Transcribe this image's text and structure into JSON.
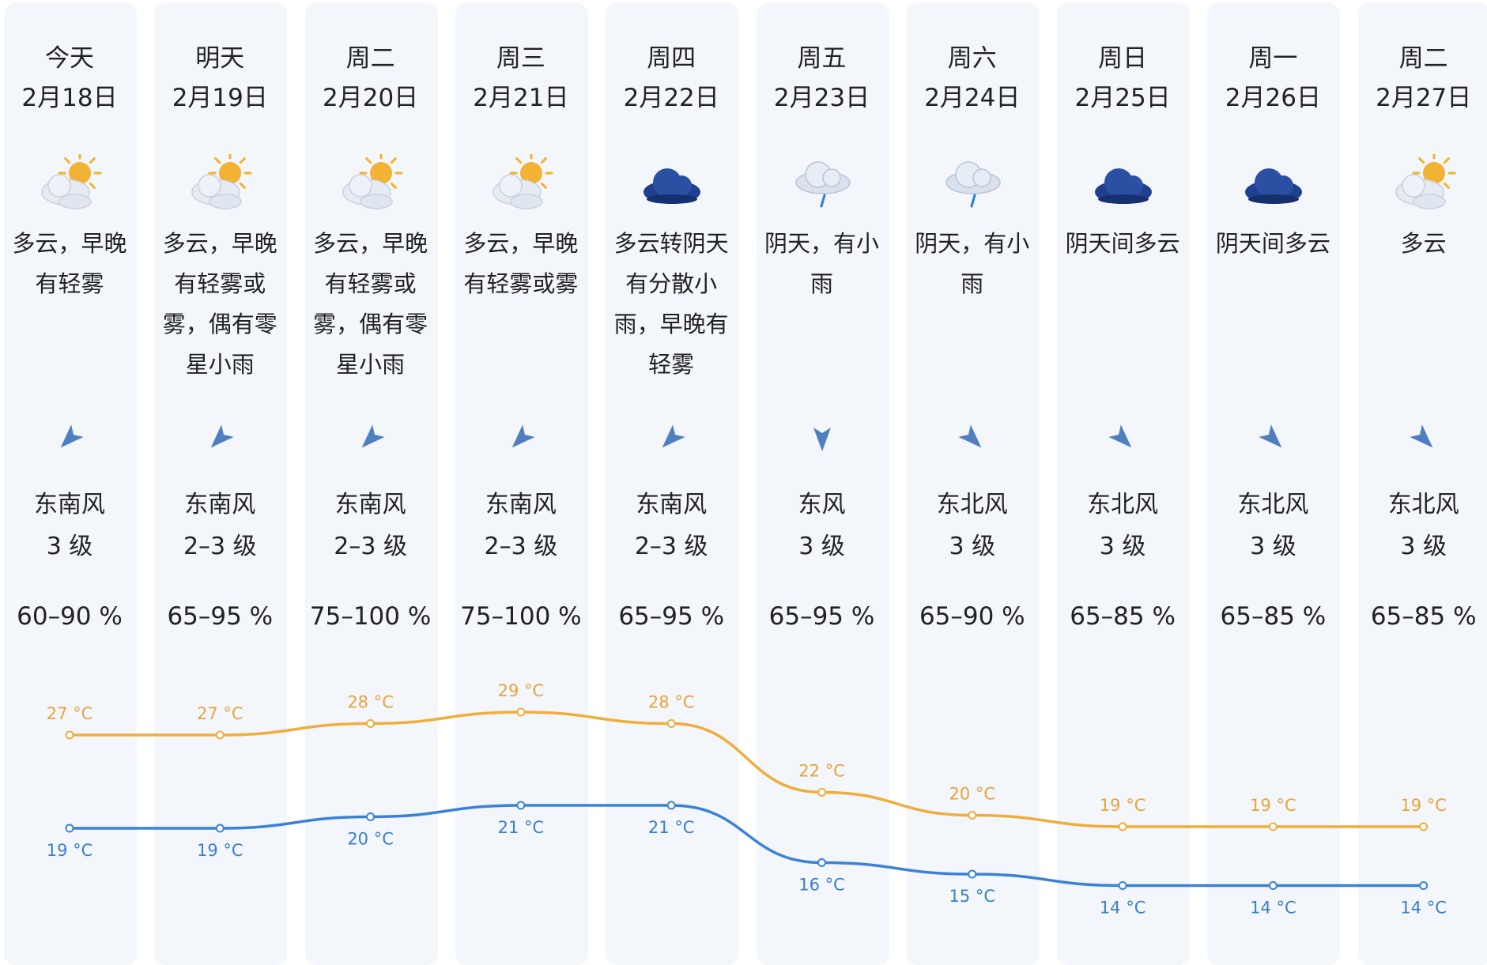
{
  "days": [
    {
      "weekday": "今天",
      "date": "2月18日",
      "icon": "cloudy-sun-icon",
      "desc": "多云，早晚\n有轻雾",
      "wind_dir": "东南风",
      "wind_level": "3 级",
      "wind_arrow": "southeast-wind-arrow-icon",
      "humidity": "60–90 %",
      "high": 27,
      "low": 19,
      "high_label": "27 °C",
      "low_label": "19 °C"
    },
    {
      "weekday": "明天",
      "date": "2月19日",
      "icon": "cloudy-sun-icon",
      "desc": "多云，早晚\n有轻雾或\n雾，偶有零\n星小雨",
      "wind_dir": "东南风",
      "wind_level": "2–3 级",
      "wind_arrow": "southeast-wind-arrow-icon",
      "humidity": "65–95 %",
      "high": 27,
      "low": 19,
      "high_label": "27 °C",
      "low_label": "19 °C"
    },
    {
      "weekday": "周二",
      "date": "2月20日",
      "icon": "cloudy-sun-icon",
      "desc": "多云，早晚\n有轻雾或\n雾，偶有零\n星小雨",
      "wind_dir": "东南风",
      "wind_level": "2–3 级",
      "wind_arrow": "southeast-wind-arrow-icon",
      "humidity": "75–100 %",
      "high": 28,
      "low": 20,
      "high_label": "28 °C",
      "low_label": "20 °C"
    },
    {
      "weekday": "周三",
      "date": "2月21日",
      "icon": "cloudy-sun-icon",
      "desc": "多云，早晚\n有轻雾或雾",
      "wind_dir": "东南风",
      "wind_level": "2–3 级",
      "wind_arrow": "southeast-wind-arrow-icon",
      "humidity": "75–100 %",
      "high": 29,
      "low": 21,
      "high_label": "29 °C",
      "low_label": "21 °C"
    },
    {
      "weekday": "周四",
      "date": "2月22日",
      "icon": "overcast-icon",
      "desc": "多云转阴天\n有分散小\n雨，早晚有\n轻雾",
      "wind_dir": "东南风",
      "wind_level": "2–3 级",
      "wind_arrow": "southeast-wind-arrow-icon",
      "humidity": "65–95 %",
      "high": 28,
      "low": 21,
      "high_label": "28 °C",
      "low_label": "21 °C"
    },
    {
      "weekday": "周五",
      "date": "2月23日",
      "icon": "light-rain-icon",
      "desc": "阴天，有小\n雨",
      "wind_dir": "东风",
      "wind_level": "3 级",
      "wind_arrow": "east-wind-arrow-icon",
      "humidity": "65–95 %",
      "high": 22,
      "low": 16,
      "high_label": "22 °C",
      "low_label": "16 °C"
    },
    {
      "weekday": "周六",
      "date": "2月24日",
      "icon": "light-rain-icon",
      "desc": "阴天，有小\n雨",
      "wind_dir": "东北风",
      "wind_level": "3 级",
      "wind_arrow": "northeast-wind-arrow-icon",
      "humidity": "65–90 %",
      "high": 20,
      "low": 15,
      "high_label": "20 °C",
      "low_label": "15 °C"
    },
    {
      "weekday": "周日",
      "date": "2月25日",
      "icon": "overcast-icon",
      "desc": "阴天间多云",
      "wind_dir": "东北风",
      "wind_level": "3 级",
      "wind_arrow": "northeast-wind-arrow-icon",
      "humidity": "65–85 %",
      "high": 19,
      "low": 14,
      "high_label": "19 °C",
      "low_label": "14 °C"
    },
    {
      "weekday": "周一",
      "date": "2月26日",
      "icon": "overcast-icon",
      "desc": "阴天间多云",
      "wind_dir": "东北风",
      "wind_level": "3 级",
      "wind_arrow": "northeast-wind-arrow-icon",
      "humidity": "65–85 %",
      "high": 19,
      "low": 14,
      "high_label": "19 °C",
      "low_label": "14 °C"
    },
    {
      "weekday": "周二",
      "date": "2月27日",
      "icon": "cloudy-sun-icon",
      "desc": "多云",
      "wind_dir": "东北风",
      "wind_level": "3 级",
      "wind_arrow": "northeast-wind-arrow-icon",
      "humidity": "65–85 %",
      "high": 19,
      "low": 14,
      "high_label": "19 °C",
      "low_label": "14 °C"
    }
  ],
  "colors": {
    "high_line": "#f0ad3c",
    "low_line": "#3b82d6",
    "high_label": "#e8a33a",
    "low_label": "#3a7fc9",
    "column_bg": "#f3f6fb",
    "cloud_dark": "#1f3f8f",
    "sun": "#f2b233",
    "wind_arrow": "#4f7fbf"
  }
}
